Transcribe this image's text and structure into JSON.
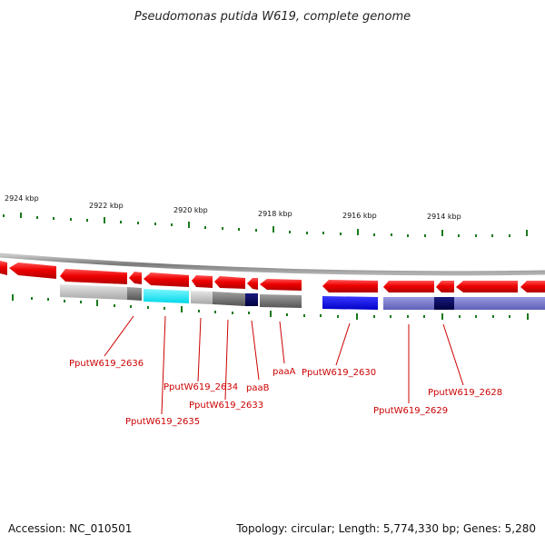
{
  "title": "Pseudomonas putida W619, complete genome",
  "scale_labels": [
    "2924 kbp",
    "2922 kbp",
    "2920 kbp",
    "2918 kbp",
    "2916 kbp",
    "2914 kbp"
  ],
  "gene_labels": [
    {
      "id": "g2636",
      "text": "PputW619_2636"
    },
    {
      "id": "g2635",
      "text": "PputW619_2635"
    },
    {
      "id": "g2634",
      "text": "PputW619_2634"
    },
    {
      "id": "g2633",
      "text": "PputW619_2633"
    },
    {
      "id": "gpaaB",
      "text": "paaB"
    },
    {
      "id": "gpaaA",
      "text": "paaA"
    },
    {
      "id": "g2630",
      "text": "PputW619_2630"
    },
    {
      "id": "g2629",
      "text": "PputW619_2629"
    },
    {
      "id": "g2628",
      "text": "PputW619_2628"
    }
  ],
  "footer": {
    "accession": "Accession: NC_010501",
    "summary": "Topology: circular; Length: 5,774,330 bp; Genes: 5,280"
  },
  "colors": {
    "gene_red": "#ee0000",
    "label_red": "#cc0000",
    "tick_green": "#1a7a1a",
    "backbone": "#8a8a8a"
  }
}
